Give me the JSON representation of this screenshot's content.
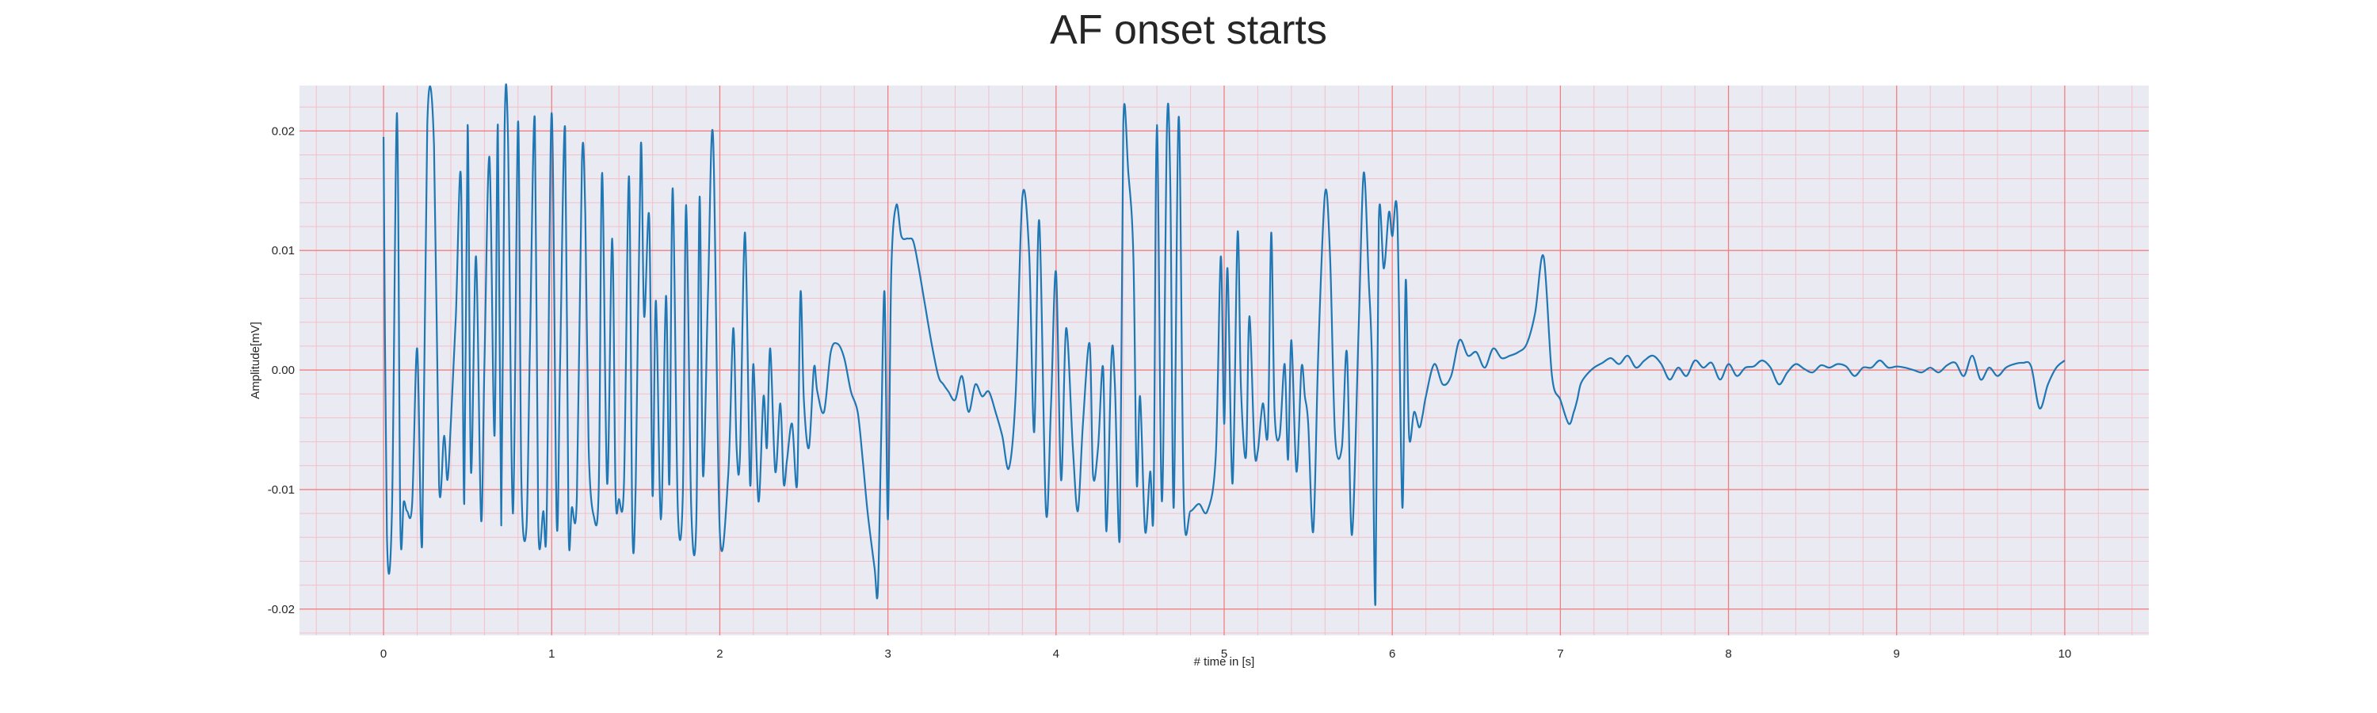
{
  "chart_data": {
    "type": "line",
    "title": "AF onset starts",
    "xlabel": "# time in [s]",
    "ylabel": "Amplitude[mV]",
    "xlim": [
      -0.5,
      10.5
    ],
    "ylim": [
      -0.0222,
      0.0238
    ],
    "xticks": [
      0,
      1,
      2,
      3,
      4,
      5,
      6,
      7,
      8,
      9,
      10
    ],
    "xtick_labels": [
      "0",
      "1",
      "2",
      "3",
      "4",
      "5",
      "6",
      "7",
      "8",
      "9",
      "10"
    ],
    "yticks": [
      -0.02,
      -0.01,
      0.0,
      0.01,
      0.02
    ],
    "ytick_labels": [
      "-0.02",
      "-0.01",
      "0.00",
      "0.01",
      "0.02"
    ],
    "grid": "major and minor",
    "colors": {
      "line": "#1f77b4",
      "plot_background": "#eaeaf2",
      "major_grid": "#f08080",
      "minor_grid": "#f4c0c8"
    },
    "series": [
      {
        "x": [
          0.0,
          0.02,
          0.05,
          0.08,
          0.1,
          0.12,
          0.14,
          0.17,
          0.2,
          0.23,
          0.26,
          0.3,
          0.33,
          0.36,
          0.38,
          0.4,
          0.43,
          0.46,
          0.48,
          0.5,
          0.52,
          0.55,
          0.58,
          0.6,
          0.63,
          0.66,
          0.68,
          0.7,
          0.72,
          0.74,
          0.77,
          0.8,
          0.82,
          0.85,
          0.87,
          0.9,
          0.92,
          0.95,
          0.97,
          1.0,
          1.03,
          1.05,
          1.08,
          1.1,
          1.12,
          1.15,
          1.18,
          1.2,
          1.22,
          1.25,
          1.28,
          1.3,
          1.33,
          1.36,
          1.38,
          1.4,
          1.43,
          1.46,
          1.48,
          1.5,
          1.53,
          1.55,
          1.58,
          1.6,
          1.62,
          1.65,
          1.68,
          1.7,
          1.72,
          1.75,
          1.78,
          1.8,
          1.83,
          1.86,
          1.88,
          1.9,
          1.93,
          1.96,
          2.0,
          2.05,
          2.08,
          2.1,
          2.12,
          2.15,
          2.18,
          2.2,
          2.23,
          2.26,
          2.28,
          2.3,
          2.33,
          2.36,
          2.38,
          2.4,
          2.43,
          2.46,
          2.48,
          2.5,
          2.53,
          2.56,
          2.58,
          2.62,
          2.66,
          2.7,
          2.74,
          2.78,
          2.82,
          2.85,
          2.88,
          2.92,
          2.94,
          2.96,
          2.98,
          3.0,
          3.02,
          3.05,
          3.08,
          3.12,
          3.15,
          3.18,
          3.22,
          3.26,
          3.3,
          3.33,
          3.36,
          3.4,
          3.44,
          3.48,
          3.52,
          3.56,
          3.6,
          3.64,
          3.68,
          3.72,
          3.76,
          3.8,
          3.84,
          3.87,
          3.9,
          3.94,
          3.97,
          4.0,
          4.03,
          4.06,
          4.1,
          4.13,
          4.16,
          4.2,
          4.22,
          4.25,
          4.28,
          4.3,
          4.33,
          4.35,
          4.38,
          4.4,
          4.43,
          4.46,
          4.48,
          4.5,
          4.53,
          4.56,
          4.58,
          4.6,
          4.63,
          4.66,
          4.68,
          4.7,
          4.73,
          4.76,
          4.8,
          4.85,
          4.9,
          4.95,
          4.98,
          5.0,
          5.02,
          5.05,
          5.08,
          5.1,
          5.13,
          5.15,
          5.18,
          5.2,
          5.23,
          5.26,
          5.28,
          5.3,
          5.33,
          5.36,
          5.38,
          5.4,
          5.43,
          5.46,
          5.48,
          5.5,
          5.53,
          5.56,
          5.6,
          5.63,
          5.66,
          5.7,
          5.73,
          5.76,
          5.8,
          5.83,
          5.86,
          5.88,
          5.9,
          5.92,
          5.95,
          5.98,
          6.0,
          6.03,
          6.06,
          6.08,
          6.1,
          6.13,
          6.16,
          6.18,
          6.2,
          6.25,
          6.3,
          6.35,
          6.4,
          6.45,
          6.5,
          6.55,
          6.6,
          6.65,
          6.7,
          6.75,
          6.8,
          6.85,
          6.9,
          6.95,
          7.0,
          7.05,
          7.08,
          7.1,
          7.12,
          7.15,
          7.2,
          7.25,
          7.3,
          7.35,
          7.4,
          7.45,
          7.5,
          7.55,
          7.6,
          7.65,
          7.7,
          7.75,
          7.8,
          7.85,
          7.9,
          7.95,
          8.0,
          8.05,
          8.1,
          8.15,
          8.2,
          8.25,
          8.3,
          8.35,
          8.4,
          8.45,
          8.5,
          8.55,
          8.6,
          8.65,
          8.7,
          8.75,
          8.8,
          8.85,
          8.9,
          8.95,
          9.0,
          9.05,
          9.1,
          9.15,
          9.2,
          9.25,
          9.3,
          9.35,
          9.4,
          9.45,
          9.5,
          9.55,
          9.6,
          9.65,
          9.7,
          9.75,
          9.8,
          9.85,
          9.9,
          9.95,
          10.0
        ],
        "y": [
          0.0195,
          -0.0138,
          -0.0118,
          0.0215,
          -0.013,
          -0.011,
          -0.0118,
          -0.0112,
          0.0018,
          -0.0145,
          0.0205,
          0.0188,
          -0.0095,
          -0.0055,
          -0.0092,
          -0.0045,
          0.0045,
          0.0162,
          -0.0112,
          0.0205,
          -0.0085,
          0.0095,
          -0.0125,
          0.0005,
          0.0178,
          -0.0055,
          0.0205,
          -0.013,
          0.0202,
          0.0195,
          -0.012,
          0.0208,
          -0.0095,
          -0.0132,
          0.0015,
          0.021,
          -0.0128,
          -0.0118,
          -0.0125,
          0.0215,
          -0.0128,
          0.0005,
          0.0202,
          -0.013,
          -0.0115,
          -0.0105,
          0.0175,
          0.013,
          -0.0065,
          -0.0122,
          -0.0098,
          0.0165,
          -0.0095,
          0.011,
          -0.0102,
          -0.0108,
          -0.0095,
          0.0162,
          -0.0132,
          -0.0095,
          0.0188,
          0.0045,
          0.0128,
          -0.0105,
          0.0058,
          -0.0125,
          0.0062,
          -0.0095,
          0.0152,
          -0.0115,
          -0.0105,
          0.0138,
          -0.0115,
          -0.0128,
          0.0145,
          -0.0088,
          0.0065,
          0.0195,
          -0.0135,
          -0.0088,
          0.0035,
          -0.0065,
          -0.0072,
          0.0115,
          -0.0095,
          0.0005,
          -0.011,
          -0.0022,
          -0.0065,
          0.0018,
          -0.0085,
          -0.0028,
          -0.0095,
          -0.0075,
          -0.0045,
          -0.0095,
          0.0065,
          -0.0025,
          -0.0065,
          0.0002,
          -0.0018,
          -0.0035,
          0.0015,
          0.0022,
          0.001,
          -0.0018,
          -0.0035,
          -0.0075,
          -0.012,
          -0.0165,
          -0.0185,
          -0.0055,
          0.0065,
          -0.0125,
          0.0082,
          0.0138,
          0.0112,
          0.011,
          0.0108,
          0.0088,
          0.0055,
          0.0022,
          -0.0005,
          -0.0012,
          -0.0018,
          -0.0025,
          -0.0005,
          -0.0035,
          -0.0012,
          -0.0022,
          -0.0018,
          -0.0035,
          -0.0055,
          -0.0082,
          -0.002,
          0.0145,
          0.0098,
          -0.0052,
          0.0125,
          -0.0118,
          -0.003,
          0.0082,
          -0.0092,
          0.0035,
          -0.0065,
          -0.0118,
          -0.0045,
          0.0022,
          -0.0088,
          -0.0065,
          0.0002,
          -0.0135,
          0.0012,
          -0.0012,
          -0.0138,
          0.0205,
          0.0165,
          0.0095,
          -0.0095,
          -0.0022,
          -0.0135,
          -0.0085,
          -0.0115,
          0.0205,
          -0.011,
          0.0205,
          0.0152,
          -0.0115,
          0.0212,
          -0.0112,
          -0.0118,
          -0.0112,
          -0.0118,
          -0.0072,
          0.0095,
          -0.0045,
          0.0085,
          -0.0095,
          0.0115,
          -0.0015,
          -0.0072,
          0.0045,
          -0.0065,
          -0.0068,
          -0.0028,
          -0.0052,
          0.0115,
          -0.0035,
          -0.0055,
          0.0005,
          -0.0075,
          0.0025,
          -0.0085,
          0.0002,
          -0.0022,
          -0.0045,
          -0.0135,
          0.0015,
          0.0148,
          0.0095,
          -0.0055,
          -0.0065,
          0.0015,
          -0.0138,
          0.0035,
          0.0165,
          0.0075,
          0.0002,
          -0.0195,
          0.0125,
          0.0085,
          0.0132,
          0.0112,
          0.0128,
          -0.0115,
          0.0075,
          -0.0055,
          -0.0035,
          -0.0048,
          -0.0038,
          -0.0022,
          0.0005,
          -0.0012,
          -0.0005,
          0.0025,
          0.0012,
          0.0015,
          0.0002,
          0.0018,
          0.001,
          0.0012,
          0.0015,
          0.0022,
          0.0048,
          0.0095,
          -0.0005,
          -0.0025,
          -0.0045,
          -0.0035,
          -0.0025,
          -0.0012,
          -0.0005,
          0.0002,
          0.0006,
          0.001,
          0.0005,
          0.0012,
          0.0002,
          0.0008,
          0.0012,
          0.0005,
          -0.0008,
          0.0002,
          -0.0005,
          0.0008,
          0.0002,
          0.0006,
          -0.0008,
          0.0005,
          -0.0005,
          0.0002,
          0.0003,
          0.0008,
          0.0002,
          -0.0012,
          -0.0002,
          0.0005,
          0.0001,
          -0.0002,
          0.0004,
          0.0002,
          0.0005,
          0.0003,
          -0.0005,
          0.0002,
          0.0002,
          0.0008,
          0.0002,
          0.0003,
          0.0002,
          0.0,
          -0.0002,
          0.0002,
          -0.0002,
          0.0004,
          0.0006,
          -0.0005,
          0.0012,
          -0.0008,
          0.0002,
          -0.0005,
          0.0002,
          0.0005,
          0.0006,
          0.0003,
          -0.0032,
          -0.0012,
          0.0002,
          0.0008
        ]
      }
    ]
  }
}
